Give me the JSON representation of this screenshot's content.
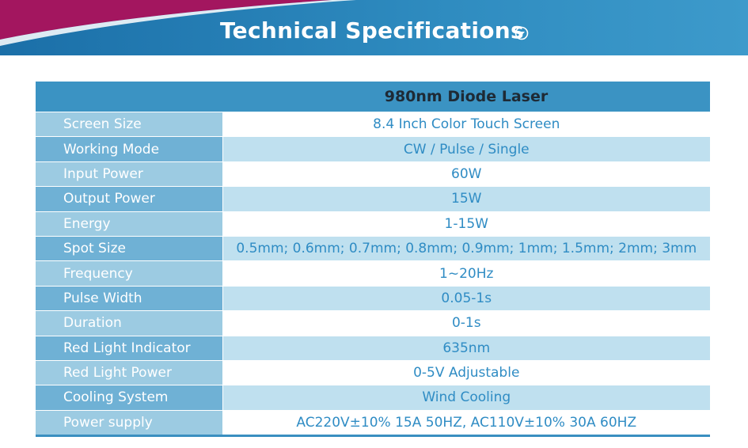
{
  "header": {
    "title": "Technical Specifications"
  },
  "table": {
    "column_header": "980nm Diode Laser",
    "rows": [
      [
        "Screen Size",
        "8.4 Inch Color Touch Screen"
      ],
      [
        "Working Mode",
        "CW / Pulse / Single"
      ],
      [
        "Input Power",
        "60W"
      ],
      [
        "Output Power",
        "15W"
      ],
      [
        "Energy",
        "1-15W"
      ],
      [
        "Spot Size",
        "0.5mm; 0.6mm; 0.7mm; 0.8mm; 0.9mm; 1mm; 1.5mm; 2mm; 3mm"
      ],
      [
        "Frequency",
        "1~20Hz"
      ],
      [
        "Pulse Width",
        "0.05-1s"
      ],
      [
        "Duration",
        "0-1s"
      ],
      [
        "Red Light Indicator",
        "635nm"
      ],
      [
        "Red Light Power",
        "0-5V Adjustable"
      ],
      [
        "Cooling System",
        "Wind Cooling"
      ],
      [
        "Power supply",
        "AC220V±10% 15A 50HZ, AC110V±10% 30A 60HZ"
      ]
    ]
  }
}
